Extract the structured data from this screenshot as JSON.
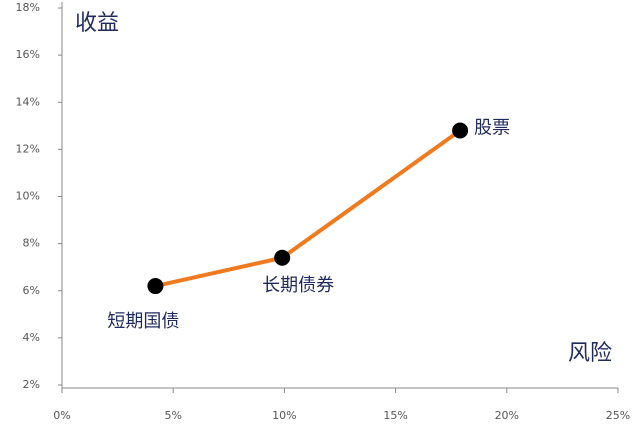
{
  "chart_data": {
    "type": "line",
    "ylabel": "收益",
    "xlabel": "风险",
    "x": [
      4.2,
      9.9,
      17.9
    ],
    "values": [
      6.2,
      7.4,
      12.8
    ],
    "point_labels": [
      "短期国债",
      "长期债券",
      "股票"
    ],
    "color": "#f07a1e",
    "marker_color": "#000000",
    "xlim": [
      0,
      25
    ],
    "xticks": [
      {
        "value": 0,
        "label": "0%"
      },
      {
        "value": 5,
        "label": "5%"
      },
      {
        "value": 10,
        "label": "10%"
      },
      {
        "value": 15,
        "label": "15%"
      },
      {
        "value": 20,
        "label": "20%"
      },
      {
        "value": 25,
        "label": "25%"
      }
    ],
    "ylim": [
      2,
      18
    ],
    "yticks": [
      {
        "value": 2,
        "label": "2%"
      },
      {
        "value": 4,
        "label": "4%"
      },
      {
        "value": 6,
        "label": "6%"
      },
      {
        "value": 8,
        "label": "8%"
      },
      {
        "value": 10,
        "label": "10%"
      },
      {
        "value": 12,
        "label": "12%"
      },
      {
        "value": 14,
        "label": "14%"
      },
      {
        "value": 16,
        "label": "16%"
      },
      {
        "value": 18,
        "label": "18%"
      }
    ]
  }
}
